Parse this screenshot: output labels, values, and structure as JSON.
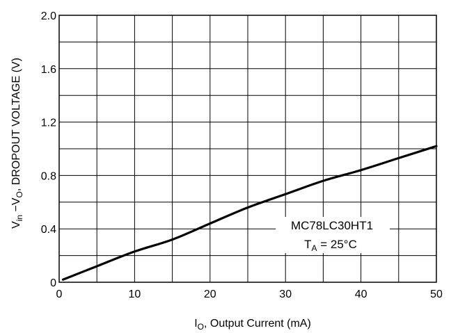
{
  "chart_data": {
    "type": "line",
    "title": "",
    "xlabel": {
      "main": "I",
      "sub": "O",
      "rest": ", Output Current (mA)"
    },
    "ylabel": {
      "v": "V",
      "in": "in",
      "dash": " −V",
      "o": "O",
      "rest": ", DROPOUT VOLTAGE (V)"
    },
    "xlim": [
      0,
      50
    ],
    "ylim": [
      0,
      2.0
    ],
    "x_ticks": [
      0,
      5,
      10,
      15,
      20,
      25,
      30,
      35,
      40,
      45,
      50
    ],
    "x_tick_labels": [
      "0",
      "10",
      "20",
      "30",
      "40",
      "50"
    ],
    "x_tick_label_values": [
      0,
      10,
      20,
      30,
      40,
      50
    ],
    "y_ticks": [
      0,
      0.2,
      0.4,
      0.6,
      0.8,
      1.0,
      1.2,
      1.4,
      1.6,
      1.8,
      2.0
    ],
    "y_tick_labels": [
      "0",
      "0.4",
      "0.8",
      "1.2",
      "1.6",
      "2.0"
    ],
    "y_tick_label_values": [
      0,
      0.4,
      0.8,
      1.2,
      1.6,
      2.0
    ],
    "grid": true,
    "annotation": {
      "device": "MC78LC30HT1",
      "temp_t": "T",
      "temp_sub": "A",
      "temp_rest": " = 25°C"
    },
    "series": [
      {
        "x": [
          0.5,
          5,
          10,
          15,
          20,
          25,
          30,
          35,
          40,
          45,
          50
        ],
        "y": [
          0.02,
          0.12,
          0.23,
          0.32,
          0.44,
          0.56,
          0.66,
          0.76,
          0.84,
          0.93,
          1.02
        ]
      }
    ],
    "colors": {
      "line": "#000000",
      "grid": "#000000",
      "background": "#ffffff"
    }
  }
}
